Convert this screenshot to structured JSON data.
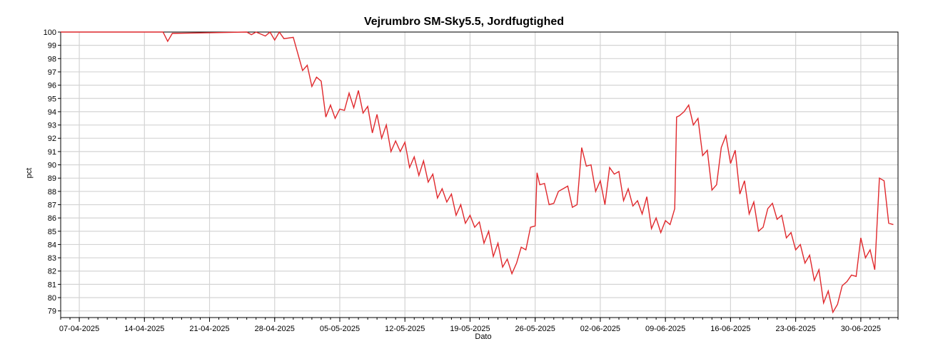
{
  "chart_data": {
    "type": "line",
    "title": "Vejrumbro SM-Sky5.5, Jordfugtighed",
    "xlabel": "Dato",
    "ylabel": "pct",
    "ylim": [
      78.5,
      100
    ],
    "xlim": [
      "2025-04-05",
      "2025-07-04"
    ],
    "y_ticks": [
      79,
      80,
      81,
      82,
      83,
      84,
      85,
      86,
      87,
      88,
      89,
      90,
      91,
      92,
      93,
      94,
      95,
      96,
      97,
      98,
      99,
      100
    ],
    "x_ticks": [
      "07-04-2025",
      "14-04-2025",
      "21-04-2025",
      "28-04-2025",
      "05-05-2025",
      "12-05-2025",
      "19-05-2025",
      "26-05-2025",
      "02-06-2025",
      "09-06-2025",
      "16-06-2025",
      "23-06-2025",
      "30-06-2025"
    ],
    "grid": true,
    "line_color": "#e0282c",
    "series": [
      {
        "points": [
          [
            "2025-04-05",
            100
          ],
          [
            "2025-04-16",
            100
          ],
          [
            "2025-04-16.5",
            99.3
          ],
          [
            "2025-04-17",
            99.9
          ],
          [
            "2025-04-25",
            100
          ],
          [
            "2025-04-25.5",
            99.8
          ],
          [
            "2025-04-26",
            100
          ],
          [
            "2025-04-27",
            99.7
          ],
          [
            "2025-04-27.5",
            100
          ],
          [
            "2025-04-28",
            99.4
          ],
          [
            "2025-04-28.5",
            100
          ],
          [
            "2025-04-29",
            99.5
          ],
          [
            "2025-04-30",
            99.6
          ],
          [
            "2025-05-01",
            97.1
          ],
          [
            "2025-05-01.5",
            97.5
          ],
          [
            "2025-05-02",
            95.9
          ],
          [
            "2025-05-02.5",
            96.6
          ],
          [
            "2025-05-03",
            96.3
          ],
          [
            "2025-05-03.5",
            93.6
          ],
          [
            "2025-05-04",
            94.5
          ],
          [
            "2025-05-04.5",
            93.5
          ],
          [
            "2025-05-05",
            94.2
          ],
          [
            "2025-05-05.5",
            94.1
          ],
          [
            "2025-05-06",
            95.4
          ],
          [
            "2025-05-06.5",
            94.3
          ],
          [
            "2025-05-07",
            95.6
          ],
          [
            "2025-05-07.5",
            93.9
          ],
          [
            "2025-05-08",
            94.4
          ],
          [
            "2025-05-08.5",
            92.4
          ],
          [
            "2025-05-09",
            93.8
          ],
          [
            "2025-05-09.5",
            92.0
          ],
          [
            "2025-05-10",
            93.0
          ],
          [
            "2025-05-10.5",
            91.0
          ],
          [
            "2025-05-11",
            91.8
          ],
          [
            "2025-05-11.5",
            91.0
          ],
          [
            "2025-05-12",
            91.7
          ],
          [
            "2025-05-12.5",
            89.8
          ],
          [
            "2025-05-13",
            90.6
          ],
          [
            "2025-05-13.5",
            89.2
          ],
          [
            "2025-05-14",
            90.3
          ],
          [
            "2025-05-14.5",
            88.7
          ],
          [
            "2025-05-15",
            89.3
          ],
          [
            "2025-05-15.5",
            87.5
          ],
          [
            "2025-05-16",
            88.2
          ],
          [
            "2025-05-16.5",
            87.2
          ],
          [
            "2025-05-17",
            87.8
          ],
          [
            "2025-05-17.5",
            86.2
          ],
          [
            "2025-05-18",
            87.0
          ],
          [
            "2025-05-18.5",
            85.6
          ],
          [
            "2025-05-19",
            86.2
          ],
          [
            "2025-05-19.5",
            85.3
          ],
          [
            "2025-05-20",
            85.7
          ],
          [
            "2025-05-20.5",
            84.1
          ],
          [
            "2025-05-21",
            85.0
          ],
          [
            "2025-05-21.5",
            83.1
          ],
          [
            "2025-05-22",
            84.1
          ],
          [
            "2025-05-22.5",
            82.3
          ],
          [
            "2025-05-23",
            82.9
          ],
          [
            "2025-05-23.5",
            81.8
          ],
          [
            "2025-05-24",
            82.6
          ],
          [
            "2025-05-24.5",
            83.8
          ],
          [
            "2025-05-25",
            83.6
          ],
          [
            "2025-05-25.5",
            85.3
          ],
          [
            "2025-05-26",
            85.4
          ],
          [
            "2025-05-26.2",
            89.4
          ],
          [
            "2025-05-26.5",
            88.5
          ],
          [
            "2025-05-27",
            88.6
          ],
          [
            "2025-05-27.5",
            87.0
          ],
          [
            "2025-05-28",
            87.1
          ],
          [
            "2025-05-28.5",
            88.0
          ],
          [
            "2025-05-29",
            88.2
          ],
          [
            "2025-05-29.5",
            88.4
          ],
          [
            "2025-05-30",
            86.8
          ],
          [
            "2025-05-30.5",
            87.0
          ],
          [
            "2025-05-31",
            91.3
          ],
          [
            "2025-05-31.5",
            89.9
          ],
          [
            "2025-06-01",
            90.0
          ],
          [
            "2025-06-01.5",
            88.0
          ],
          [
            "2025-06-02",
            88.8
          ],
          [
            "2025-06-02.5",
            87.0
          ],
          [
            "2025-06-03",
            89.8
          ],
          [
            "2025-06-03.5",
            89.3
          ],
          [
            "2025-06-04",
            89.5
          ],
          [
            "2025-06-04.5",
            87.3
          ],
          [
            "2025-06-05",
            88.2
          ],
          [
            "2025-06-05.5",
            86.9
          ],
          [
            "2025-06-06",
            87.3
          ],
          [
            "2025-06-06.5",
            86.3
          ],
          [
            "2025-06-07",
            87.6
          ],
          [
            "2025-06-07.5",
            85.2
          ],
          [
            "2025-06-08",
            86.0
          ],
          [
            "2025-06-08.5",
            84.9
          ],
          [
            "2025-06-09",
            85.8
          ],
          [
            "2025-06-09.5",
            85.5
          ],
          [
            "2025-06-10",
            86.7
          ],
          [
            "2025-06-10.2",
            93.6
          ],
          [
            "2025-06-10.5",
            93.7
          ],
          [
            "2025-06-11",
            94.0
          ],
          [
            "2025-06-11.5",
            94.5
          ],
          [
            "2025-06-12",
            93.0
          ],
          [
            "2025-06-12.5",
            93.5
          ],
          [
            "2025-06-13",
            90.7
          ],
          [
            "2025-06-13.5",
            91.1
          ],
          [
            "2025-06-14",
            88.1
          ],
          [
            "2025-06-14.5",
            88.5
          ],
          [
            "2025-06-15",
            91.3
          ],
          [
            "2025-06-15.5",
            92.2
          ],
          [
            "2025-06-16",
            90.1
          ],
          [
            "2025-06-16.5",
            91.1
          ],
          [
            "2025-06-17",
            87.8
          ],
          [
            "2025-06-17.5",
            88.8
          ],
          [
            "2025-06-18",
            86.3
          ],
          [
            "2025-06-18.5",
            87.2
          ],
          [
            "2025-06-19",
            85.0
          ],
          [
            "2025-06-19.5",
            85.3
          ],
          [
            "2025-06-20",
            86.7
          ],
          [
            "2025-06-20.5",
            87.1
          ],
          [
            "2025-06-21",
            85.9
          ],
          [
            "2025-06-21.5",
            86.2
          ],
          [
            "2025-06-22",
            84.5
          ],
          [
            "2025-06-22.5",
            84.9
          ],
          [
            "2025-06-23",
            83.6
          ],
          [
            "2025-06-23.5",
            84.0
          ],
          [
            "2025-06-24",
            82.6
          ],
          [
            "2025-06-24.5",
            83.2
          ],
          [
            "2025-06-25",
            81.3
          ],
          [
            "2025-06-25.5",
            82.1
          ],
          [
            "2025-06-26",
            79.6
          ],
          [
            "2025-06-26.5",
            80.5
          ],
          [
            "2025-06-27",
            78.9
          ],
          [
            "2025-06-27.5",
            79.5
          ],
          [
            "2025-06-28",
            80.9
          ],
          [
            "2025-06-28.5",
            81.2
          ],
          [
            "2025-06-29",
            81.7
          ],
          [
            "2025-06-29.5",
            81.6
          ],
          [
            "2025-06-30",
            84.5
          ],
          [
            "2025-06-30.5",
            83.0
          ],
          [
            "2025-07-01",
            83.6
          ],
          [
            "2025-07-01.5",
            82.1
          ],
          [
            "2025-07-02",
            89.0
          ],
          [
            "2025-07-02.5",
            88.8
          ],
          [
            "2025-07-03",
            85.6
          ],
          [
            "2025-07-03.5",
            85.5
          ]
        ]
      }
    ]
  }
}
